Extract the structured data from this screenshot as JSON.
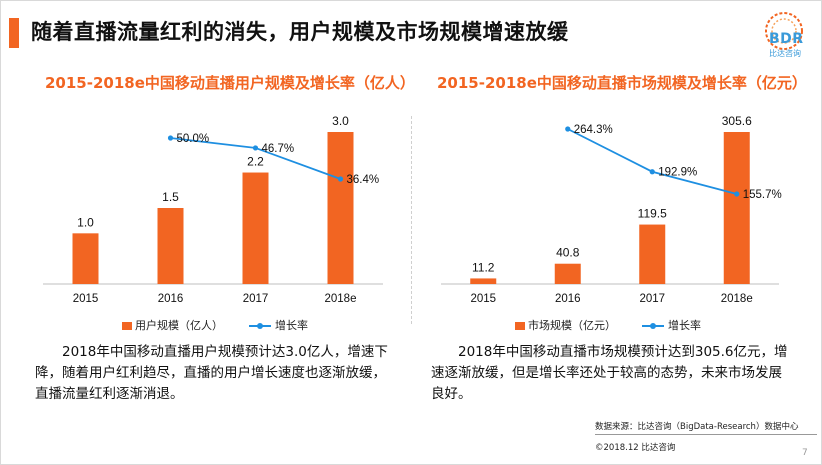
{
  "title": "随着直播流量红利的消失，用户规模及市场规模增速放缓",
  "logo": {
    "text": "BDR",
    "sub": "比达咨询"
  },
  "colors": {
    "bar": "#f26522",
    "line": "#1e8fe1",
    "title_accent": "#f26522"
  },
  "chart_data": [
    {
      "type": "bar",
      "title": "2015-2018e中国移动直播用户规模及增长率（亿人）",
      "categories": [
        "2015",
        "2016",
        "2017",
        "2018e"
      ],
      "series": [
        {
          "name": "用户规模（亿人）",
          "kind": "bar",
          "values": [
            1.0,
            1.5,
            2.2,
            3.0
          ],
          "labels": [
            "1.0",
            "1.5",
            "2.2",
            "3.0"
          ]
        },
        {
          "name": "增长率",
          "kind": "line",
          "values": [
            null,
            50.0,
            46.7,
            36.4
          ],
          "labels": [
            "",
            "50.0%",
            "46.7%",
            "36.4%"
          ]
        }
      ],
      "ylim": [
        0,
        3.0
      ],
      "ylim_line": [
        30,
        55
      ],
      "legend": [
        "用户规模（亿人）",
        "增长率"
      ],
      "description": "2018年中国移动直播用户规模预计达3.0亿人，增速下降，随着用户红利趋尽，直播的用户增长速度也逐渐放缓，直播流量红利逐渐消退。"
    },
    {
      "type": "bar",
      "title": "2015-2018e中国移动直播市场规模及增长率（亿元）",
      "categories": [
        "2015",
        "2016",
        "2017",
        "2018e"
      ],
      "series": [
        {
          "name": "市场规模（亿元）",
          "kind": "bar",
          "values": [
            11.2,
            40.8,
            119.5,
            305.6
          ],
          "labels": [
            "11.2",
            "40.8",
            "119.5",
            "305.6"
          ]
        },
        {
          "name": "增长率",
          "kind": "line",
          "values": [
            null,
            264.3,
            192.9,
            155.7
          ],
          "labels": [
            "",
            "264.3%",
            "192.9%",
            "155.7%"
          ]
        }
      ],
      "ylim": [
        0,
        305.6
      ],
      "ylim_line": [
        130,
        280
      ],
      "legend": [
        "市场规模（亿元）",
        "增长率"
      ],
      "description": "2018年中国移动直播市场规模预计达到305.6亿元，增速逐渐放缓，但是增长率还处于较高的态势，未来市场发展良好。"
    }
  ],
  "source": "数据来源：比达咨询（BigData-Research）数据中心",
  "copyright": "©2018.12  比达咨询",
  "page_number": "7"
}
